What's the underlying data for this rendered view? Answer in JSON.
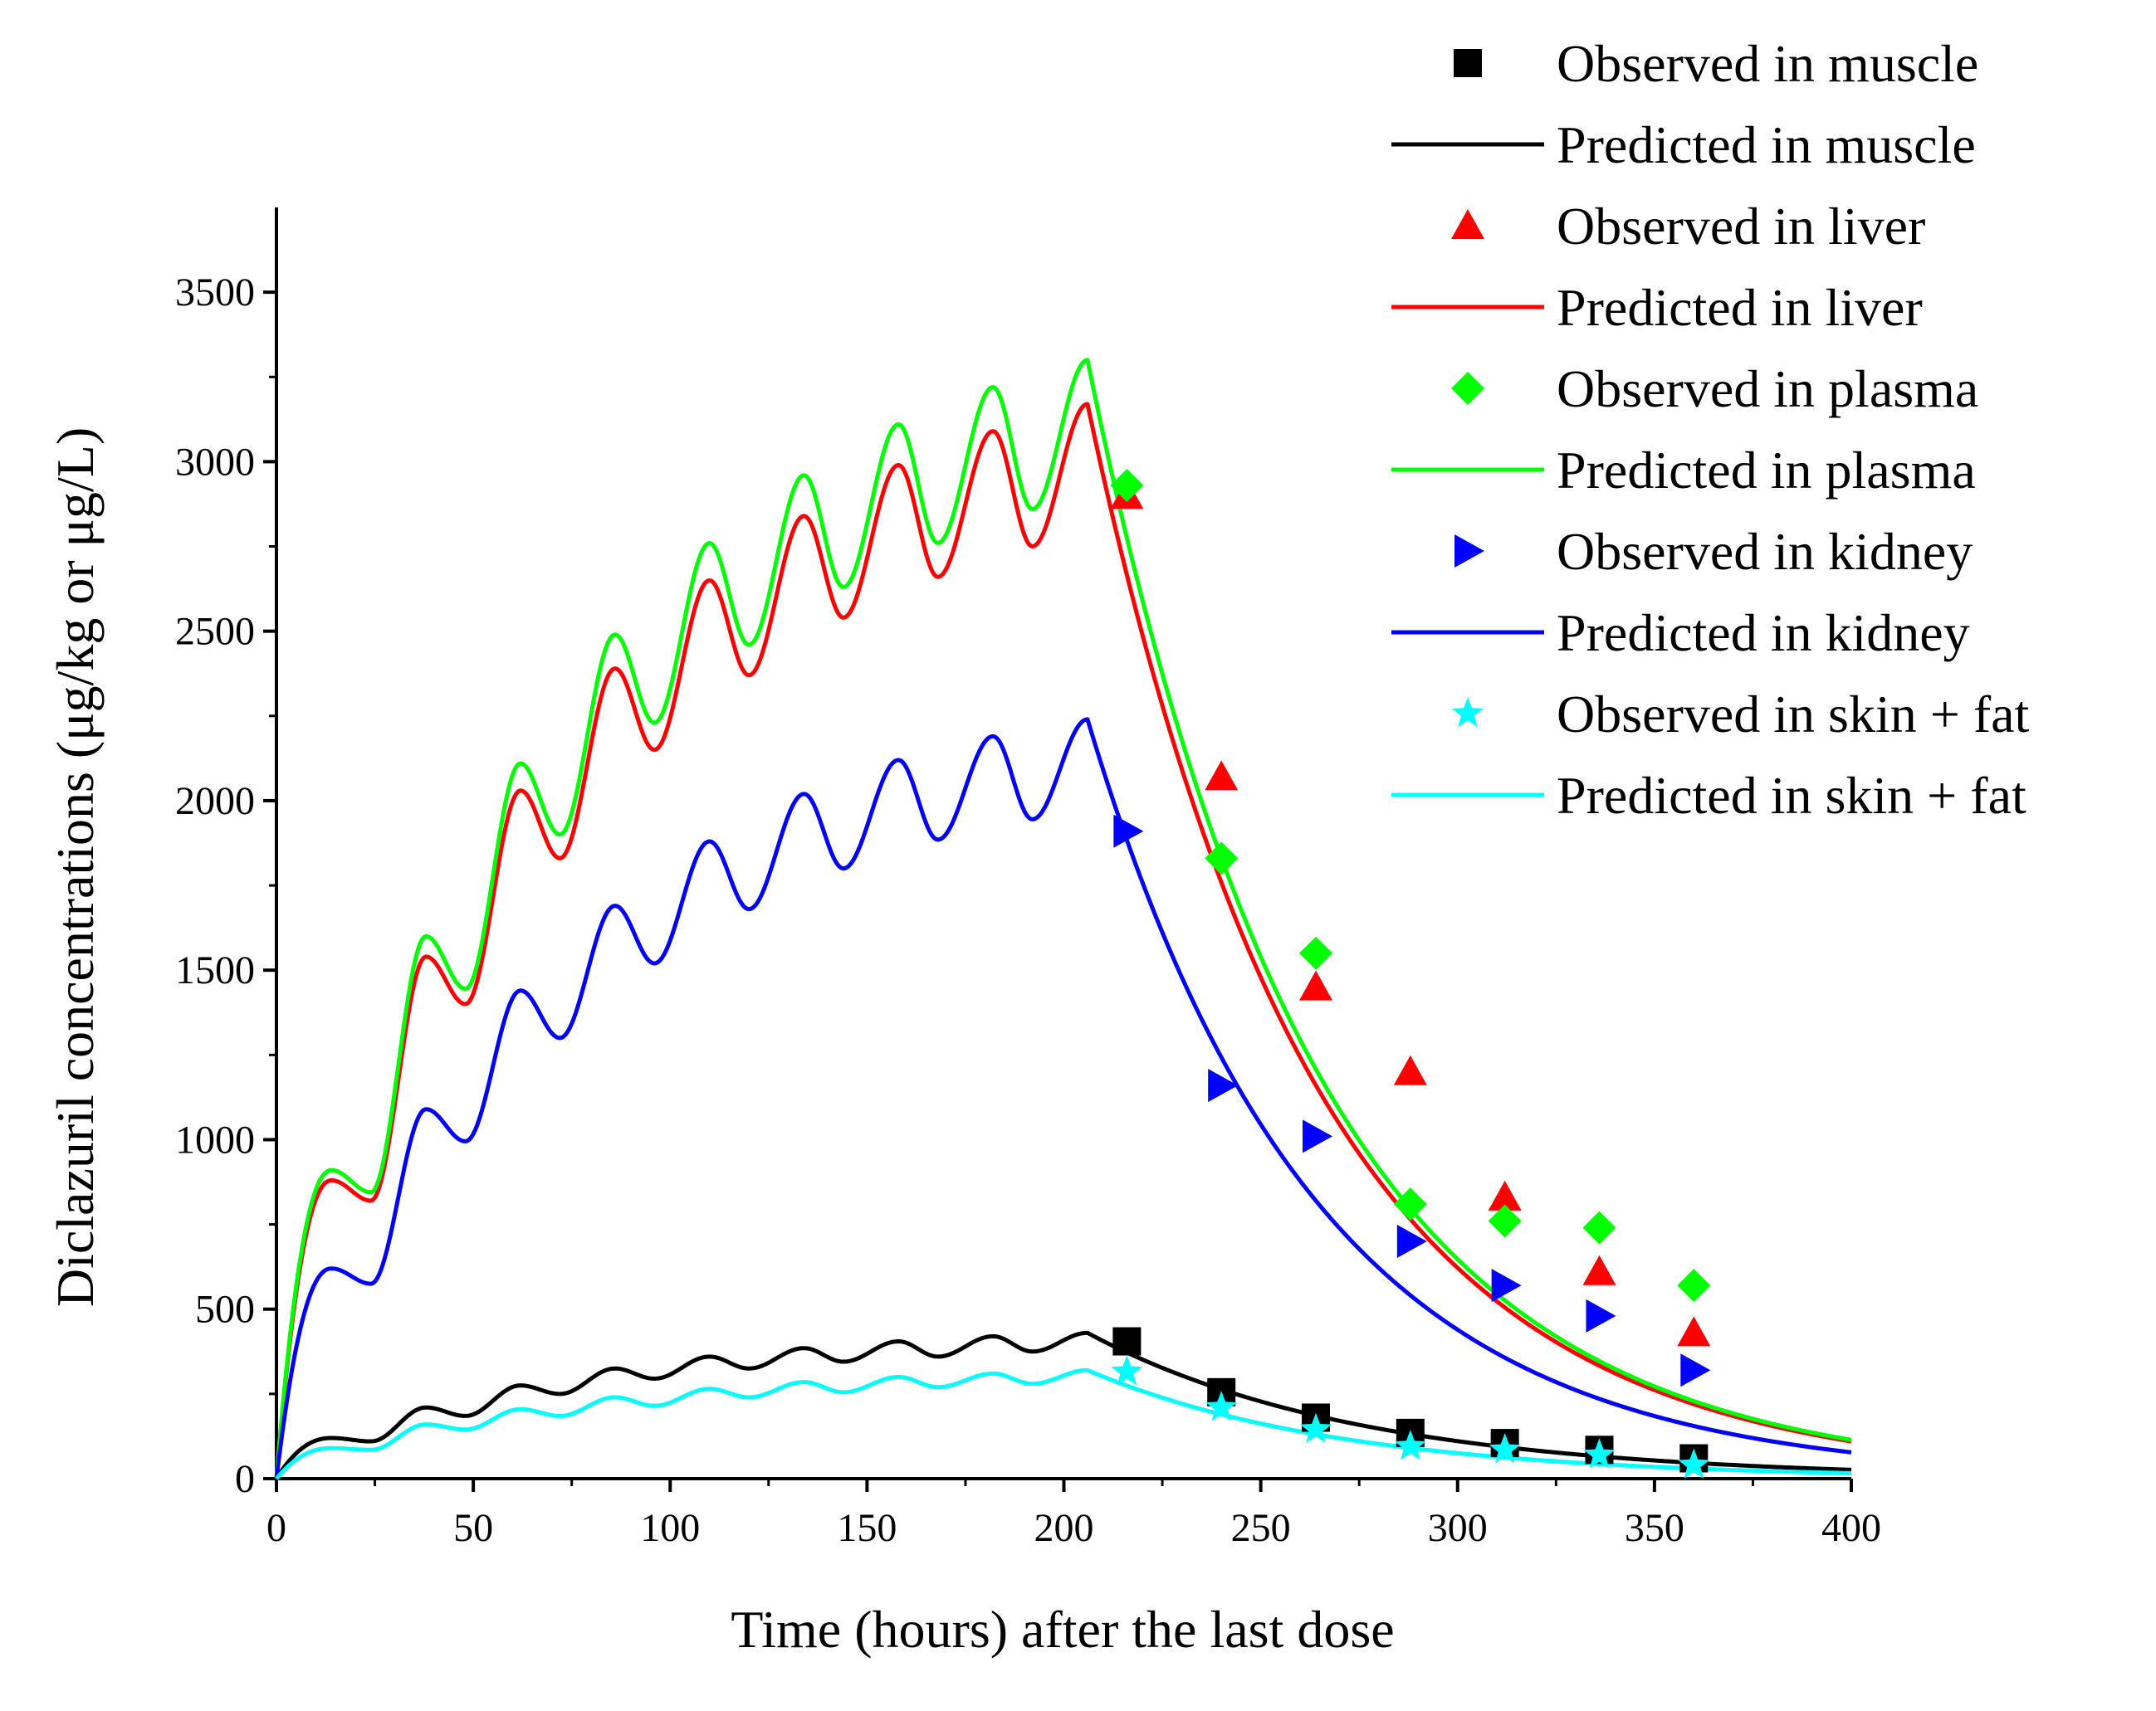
{
  "chart_data": {
    "type": "scatter+line",
    "title": "",
    "xlabel": "Time (hours) after the last dose",
    "ylabel": "Diclazuril concentrations (μg/kg or μg/L)",
    "xlim": [
      0,
      400
    ],
    "ylim": [
      0,
      3750
    ],
    "xticks": [
      0,
      50,
      100,
      150,
      200,
      250,
      300,
      350,
      400
    ],
    "yticks": [
      0,
      500,
      1000,
      1500,
      2000,
      2500,
      3000,
      3500
    ],
    "grid": false,
    "legend_position": "top-right",
    "dosing": {
      "interval_h": 24,
      "doses": 9,
      "note": "Predicted curves: repeated dosing every 24 h, peaks approx. 14 h after each dose, then elimination after the last dose"
    },
    "series": [
      {
        "name": "Observed in muscle",
        "kind": "observed",
        "marker": "square",
        "color": "#000000",
        "x": [
          216,
          240,
          264,
          288,
          312,
          336,
          360
        ],
        "y": [
          405,
          255,
          180,
          135,
          105,
          85,
          60
        ]
      },
      {
        "name": "Predicted in muscle",
        "kind": "predicted",
        "color": "#000000",
        "peaks": [
          120,
          210,
          275,
          325,
          360,
          385,
          405,
          420,
          430
        ],
        "troughs": [
          110,
          185,
          250,
          295,
          325,
          345,
          360,
          375
        ],
        "half_life_h": 48
      },
      {
        "name": "Observed in liver",
        "kind": "observed",
        "marker": "triangle",
        "color": "#ff0000",
        "x": [
          216,
          240,
          264,
          288,
          312,
          336,
          360
        ],
        "y": [
          2900,
          2070,
          1450,
          1200,
          830,
          610,
          430
        ]
      },
      {
        "name": "Predicted in liver",
        "kind": "predicted",
        "color": "#ff0000",
        "peaks": [
          880,
          1540,
          2030,
          2390,
          2650,
          2840,
          2990,
          3090,
          3170
        ],
        "troughs": [
          820,
          1400,
          1830,
          2150,
          2370,
          2540,
          2660,
          2750
        ],
        "half_life_h": 40
      },
      {
        "name": "Observed in plasma",
        "kind": "observed",
        "marker": "diamond",
        "color": "#00ff00",
        "x": [
          216,
          240,
          264,
          288,
          312,
          336,
          360
        ],
        "y": [
          2930,
          1830,
          1550,
          810,
          760,
          740,
          570
        ]
      },
      {
        "name": "Predicted in plasma",
        "kind": "predicted",
        "color": "#00ff00",
        "peaks": [
          910,
          1600,
          2110,
          2490,
          2760,
          2960,
          3110,
          3220,
          3300
        ],
        "troughs": [
          845,
          1445,
          1900,
          2230,
          2460,
          2630,
          2760,
          2860
        ],
        "half_life_h": 40
      },
      {
        "name": "Observed in kidney",
        "kind": "observed",
        "marker": "triangle-right",
        "color": "#0000ff",
        "x": [
          216,
          240,
          264,
          288,
          312,
          336,
          360
        ],
        "y": [
          1910,
          1160,
          1010,
          700,
          570,
          480,
          320
        ]
      },
      {
        "name": "Predicted in kidney",
        "kind": "predicted",
        "color": "#0000ff",
        "peaks": [
          620,
          1090,
          1440,
          1690,
          1880,
          2020,
          2120,
          2190,
          2240
        ],
        "troughs": [
          575,
          995,
          1300,
          1520,
          1680,
          1800,
          1885,
          1945
        ],
        "half_life_h": 40
      },
      {
        "name": "Observed in skin + fat",
        "kind": "observed",
        "marker": "star",
        "color": "#00ffff",
        "x": [
          216,
          240,
          264,
          288,
          312,
          336,
          360
        ],
        "y": [
          315,
          210,
          145,
          95,
          85,
          70,
          40
        ]
      },
      {
        "name": "Predicted in skin + fat",
        "kind": "predicted",
        "color": "#00ffff",
        "peaks": [
          90,
          160,
          205,
          240,
          265,
          285,
          300,
          310,
          320
        ],
        "troughs": [
          85,
          145,
          185,
          215,
          240,
          255,
          270,
          280
        ],
        "half_life_h": 45
      }
    ]
  }
}
